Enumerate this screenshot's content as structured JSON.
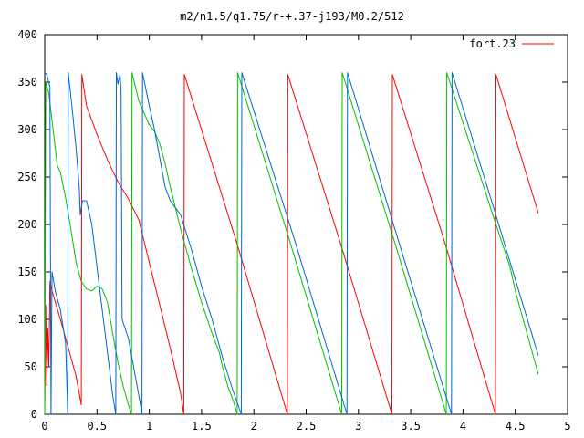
{
  "chart_data": {
    "type": "line",
    "title": "m2/n1.5/q1.75/r-+.37-j193/M0.2/512",
    "xlabel": "",
    "ylabel": "",
    "xlim": [
      0,
      5
    ],
    "ylim": [
      0,
      400
    ],
    "x_ticks": [
      0,
      0.5,
      1,
      1.5,
      2,
      2.5,
      3,
      3.5,
      4,
      4.5,
      5
    ],
    "x_tick_labels": [
      "0",
      "0.5",
      "1",
      "1.5",
      "2",
      "2.5",
      "3",
      "3.5",
      "4",
      "4.5",
      "5"
    ],
    "y_ticks": [
      0,
      50,
      100,
      150,
      200,
      250,
      300,
      350,
      400
    ],
    "y_tick_labels": [
      "0",
      "50",
      "100",
      "150",
      "200",
      "250",
      "300",
      "350",
      "400"
    ],
    "grid": false,
    "legend_position": "top-right",
    "legend": [
      {
        "label": "fort.23",
        "color": "#ff0000"
      }
    ],
    "series": [
      {
        "color": "#ff0000",
        "points": [
          [
            0.0,
            0
          ],
          [
            0.01,
            115
          ],
          [
            0.02,
            30
          ],
          [
            0.03,
            90
          ],
          [
            0.04,
            50
          ],
          [
            0.05,
            140
          ],
          [
            0.07,
            130
          ],
          [
            0.15,
            100
          ],
          [
            0.25,
            60
          ],
          [
            0.3,
            40
          ],
          [
            0.35,
            10
          ],
          [
            0.355,
            358
          ],
          [
            0.4,
            325
          ],
          [
            0.5,
            295
          ],
          [
            0.6,
            268
          ],
          [
            0.7,
            245
          ],
          [
            0.8,
            227
          ],
          [
            0.9,
            205
          ],
          [
            1.0,
            160
          ],
          [
            1.1,
            115
          ],
          [
            1.2,
            70
          ],
          [
            1.3,
            22
          ],
          [
            1.33,
            0
          ],
          [
            1.335,
            358
          ],
          [
            1.83,
            183
          ],
          [
            2.32,
            0
          ],
          [
            2.325,
            358
          ],
          [
            2.82,
            183
          ],
          [
            3.32,
            0
          ],
          [
            3.325,
            358
          ],
          [
            3.82,
            183
          ],
          [
            4.31,
            0
          ],
          [
            4.315,
            358
          ],
          [
            4.72,
            212
          ]
        ]
      },
      {
        "color": "#00c000",
        "points": [
          [
            0.0,
            0
          ],
          [
            0.01,
            350
          ],
          [
            0.02,
            345
          ],
          [
            0.04,
            338
          ],
          [
            0.08,
            300
          ],
          [
            0.12,
            262
          ],
          [
            0.15,
            255
          ],
          [
            0.2,
            228
          ],
          [
            0.25,
            195
          ],
          [
            0.3,
            160
          ],
          [
            0.35,
            140
          ],
          [
            0.4,
            132
          ],
          [
            0.45,
            130
          ],
          [
            0.5,
            135
          ],
          [
            0.55,
            132
          ],
          [
            0.6,
            118
          ],
          [
            0.65,
            85
          ],
          [
            0.7,
            55
          ],
          [
            0.75,
            30
          ],
          [
            0.8,
            10
          ],
          [
            0.83,
            0
          ],
          [
            0.835,
            360
          ],
          [
            0.9,
            330
          ],
          [
            1.0,
            305
          ],
          [
            1.05,
            298
          ],
          [
            1.1,
            285
          ],
          [
            1.15,
            265
          ],
          [
            1.2,
            240
          ],
          [
            1.3,
            195
          ],
          [
            1.4,
            155
          ],
          [
            1.5,
            118
          ],
          [
            1.6,
            85
          ],
          [
            1.67,
            65
          ],
          [
            1.7,
            50
          ],
          [
            1.75,
            30
          ],
          [
            1.8,
            15
          ],
          [
            1.84,
            0
          ],
          [
            1.845,
            360
          ],
          [
            2.35,
            180
          ],
          [
            2.84,
            0
          ],
          [
            2.845,
            360
          ],
          [
            3.35,
            180
          ],
          [
            3.84,
            0
          ],
          [
            3.845,
            360
          ],
          [
            4.3,
            205
          ],
          [
            4.45,
            155
          ],
          [
            4.5,
            130
          ],
          [
            4.72,
            42
          ]
        ]
      },
      {
        "color": "#0066cc",
        "points": [
          [
            0.0,
            360
          ],
          [
            0.02,
            358
          ],
          [
            0.05,
            345
          ],
          [
            0.06,
            0
          ],
          [
            0.07,
            150
          ],
          [
            0.1,
            130
          ],
          [
            0.15,
            110
          ],
          [
            0.2,
            75
          ],
          [
            0.22,
            0
          ],
          [
            0.225,
            360
          ],
          [
            0.26,
            325
          ],
          [
            0.3,
            280
          ],
          [
            0.33,
            240
          ],
          [
            0.34,
            210
          ],
          [
            0.36,
            225
          ],
          [
            0.4,
            225
          ],
          [
            0.45,
            200
          ],
          [
            0.5,
            155
          ],
          [
            0.55,
            110
          ],
          [
            0.6,
            65
          ],
          [
            0.65,
            20
          ],
          [
            0.68,
            0
          ],
          [
            0.685,
            360
          ],
          [
            0.7,
            348
          ],
          [
            0.72,
            358
          ],
          [
            0.73,
            342
          ],
          [
            0.74,
            100
          ],
          [
            0.8,
            80
          ],
          [
            0.85,
            50
          ],
          [
            0.9,
            20
          ],
          [
            0.93,
            0
          ],
          [
            0.935,
            360
          ],
          [
            1.0,
            325
          ],
          [
            1.05,
            300
          ],
          [
            1.1,
            270
          ],
          [
            1.15,
            240
          ],
          [
            1.2,
            225
          ],
          [
            1.3,
            210
          ],
          [
            1.4,
            175
          ],
          [
            1.5,
            135
          ],
          [
            1.6,
            100
          ],
          [
            1.7,
            60
          ],
          [
            1.8,
            25
          ],
          [
            1.88,
            0
          ],
          [
            1.885,
            360
          ],
          [
            2.4,
            180
          ],
          [
            2.89,
            0
          ],
          [
            2.895,
            360
          ],
          [
            3.39,
            180
          ],
          [
            3.89,
            0
          ],
          [
            3.895,
            360
          ],
          [
            4.3,
            215
          ],
          [
            4.72,
            62
          ]
        ]
      }
    ]
  }
}
